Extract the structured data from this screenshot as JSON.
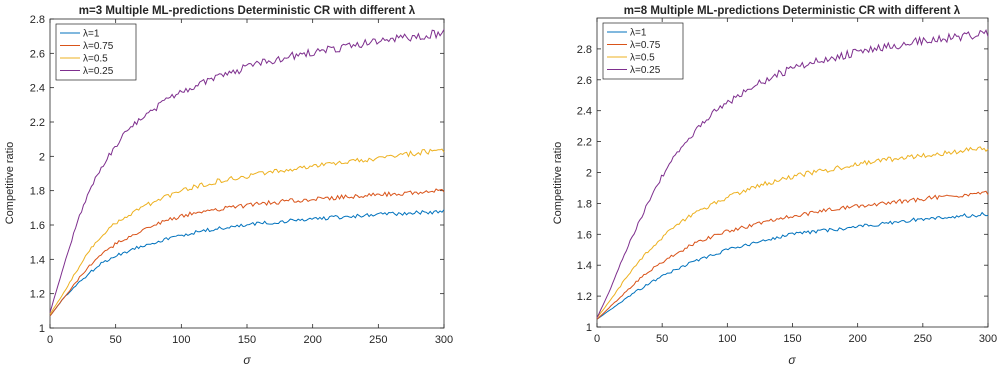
{
  "chart_data": [
    {
      "type": "line",
      "title": "m=3 Multiple ML-predictions Deterministic CR with different λ",
      "xlabel": "σ",
      "ylabel": "Competitive ratio",
      "xlim": [
        0,
        300
      ],
      "ylim": [
        1,
        2.8
      ],
      "xticks": [
        0,
        50,
        100,
        150,
        200,
        250,
        300
      ],
      "xtick_labels": [
        "0",
        "50",
        "100",
        "150",
        "200",
        "250",
        "300"
      ],
      "yticks": [
        1,
        1.2,
        1.4,
        1.6,
        1.8,
        2,
        2.2,
        2.4,
        2.6,
        2.8
      ],
      "ytick_labels": [
        "1",
        "1.2",
        "1.4",
        "1.6",
        "1.8",
        "2",
        "2.2",
        "2.4",
        "2.6",
        "2.8"
      ],
      "grid": false,
      "legend_position": "top-left",
      "x": [
        0,
        10,
        20,
        30,
        40,
        50,
        60,
        70,
        80,
        90,
        100,
        110,
        120,
        130,
        140,
        150,
        160,
        170,
        180,
        190,
        200,
        210,
        220,
        230,
        240,
        250,
        260,
        270,
        280,
        290,
        300
      ],
      "series": [
        {
          "name": "λ=1",
          "color": "#0072BD",
          "values": [
            1.07,
            1.17,
            1.25,
            1.32,
            1.38,
            1.42,
            1.45,
            1.48,
            1.5,
            1.52,
            1.54,
            1.555,
            1.57,
            1.58,
            1.59,
            1.6,
            1.61,
            1.615,
            1.62,
            1.63,
            1.635,
            1.64,
            1.645,
            1.65,
            1.655,
            1.66,
            1.665,
            1.67,
            1.67,
            1.675,
            1.68
          ]
        },
        {
          "name": "λ=0.75",
          "color": "#D95319",
          "values": [
            1.07,
            1.17,
            1.27,
            1.36,
            1.43,
            1.49,
            1.53,
            1.57,
            1.6,
            1.63,
            1.65,
            1.67,
            1.68,
            1.695,
            1.705,
            1.715,
            1.725,
            1.73,
            1.74,
            1.745,
            1.75,
            1.755,
            1.76,
            1.765,
            1.77,
            1.775,
            1.78,
            1.785,
            1.79,
            1.795,
            1.8
          ]
        },
        {
          "name": "λ=0.5",
          "color": "#EDB120",
          "values": [
            1.08,
            1.2,
            1.33,
            1.45,
            1.54,
            1.61,
            1.66,
            1.7,
            1.74,
            1.77,
            1.8,
            1.82,
            1.84,
            1.86,
            1.87,
            1.88,
            1.9,
            1.91,
            1.92,
            1.93,
            1.94,
            1.95,
            1.96,
            1.97,
            1.98,
            1.99,
            2.0,
            2.01,
            2.02,
            2.03,
            2.04
          ]
        },
        {
          "name": "λ=0.25",
          "color": "#7E2F8E",
          "values": [
            1.09,
            1.35,
            1.6,
            1.8,
            1.95,
            2.06,
            2.16,
            2.22,
            2.28,
            2.33,
            2.38,
            2.41,
            2.44,
            2.47,
            2.49,
            2.52,
            2.54,
            2.56,
            2.58,
            2.59,
            2.61,
            2.62,
            2.63,
            2.64,
            2.66,
            2.67,
            2.68,
            2.69,
            2.7,
            2.71,
            2.72
          ]
        }
      ]
    },
    {
      "type": "line",
      "title": "m=8 Multiple ML-predictions Deterministic CR with different λ",
      "xlabel": "σ",
      "ylabel": "Competitive ratio",
      "xlim": [
        0,
        300
      ],
      "ylim": [
        1,
        3
      ],
      "xticks": [
        0,
        50,
        100,
        150,
        200,
        250,
        300
      ],
      "xtick_labels": [
        "0",
        "50",
        "100",
        "150",
        "200",
        "250",
        "300"
      ],
      "yticks": [
        1,
        1.2,
        1.4,
        1.6,
        1.8,
        2,
        2.2,
        2.4,
        2.6,
        2.8
      ],
      "ytick_labels": [
        "1",
        "1.2",
        "1.4",
        "1.6",
        "1.8",
        "2",
        "2.2",
        "2.4",
        "2.6",
        "2.8"
      ],
      "grid": false,
      "legend_position": "top-left",
      "x": [
        0,
        10,
        20,
        30,
        40,
        50,
        60,
        70,
        80,
        90,
        100,
        110,
        120,
        130,
        140,
        150,
        160,
        170,
        180,
        190,
        200,
        210,
        220,
        230,
        240,
        250,
        260,
        270,
        280,
        290,
        300
      ],
      "series": [
        {
          "name": "λ=1",
          "color": "#0072BD",
          "values": [
            1.05,
            1.11,
            1.17,
            1.23,
            1.28,
            1.33,
            1.37,
            1.41,
            1.44,
            1.47,
            1.5,
            1.52,
            1.54,
            1.56,
            1.58,
            1.6,
            1.61,
            1.62,
            1.63,
            1.64,
            1.65,
            1.66,
            1.67,
            1.68,
            1.69,
            1.7,
            1.705,
            1.71,
            1.72,
            1.725,
            1.73
          ]
        },
        {
          "name": "λ=0.75",
          "color": "#D95319",
          "values": [
            1.05,
            1.13,
            1.21,
            1.29,
            1.36,
            1.42,
            1.47,
            1.52,
            1.56,
            1.59,
            1.62,
            1.64,
            1.66,
            1.68,
            1.7,
            1.72,
            1.73,
            1.75,
            1.76,
            1.77,
            1.78,
            1.79,
            1.8,
            1.81,
            1.82,
            1.83,
            1.84,
            1.845,
            1.85,
            1.86,
            1.87
          ]
        },
        {
          "name": "λ=0.5",
          "color": "#EDB120",
          "values": [
            1.06,
            1.17,
            1.29,
            1.4,
            1.5,
            1.58,
            1.65,
            1.71,
            1.76,
            1.8,
            1.84,
            1.87,
            1.9,
            1.93,
            1.95,
            1.97,
            1.99,
            2.01,
            2.02,
            2.04,
            2.05,
            2.07,
            2.08,
            2.09,
            2.1,
            2.11,
            2.12,
            2.13,
            2.14,
            2.15,
            2.15
          ]
        },
        {
          "name": "λ=0.25",
          "color": "#7E2F8E",
          "values": [
            1.06,
            1.24,
            1.45,
            1.64,
            1.82,
            1.98,
            2.11,
            2.22,
            2.31,
            2.39,
            2.45,
            2.51,
            2.56,
            2.6,
            2.64,
            2.67,
            2.7,
            2.72,
            2.74,
            2.76,
            2.78,
            2.79,
            2.81,
            2.82,
            2.84,
            2.85,
            2.86,
            2.87,
            2.88,
            2.89,
            2.9
          ]
        }
      ]
    }
  ]
}
